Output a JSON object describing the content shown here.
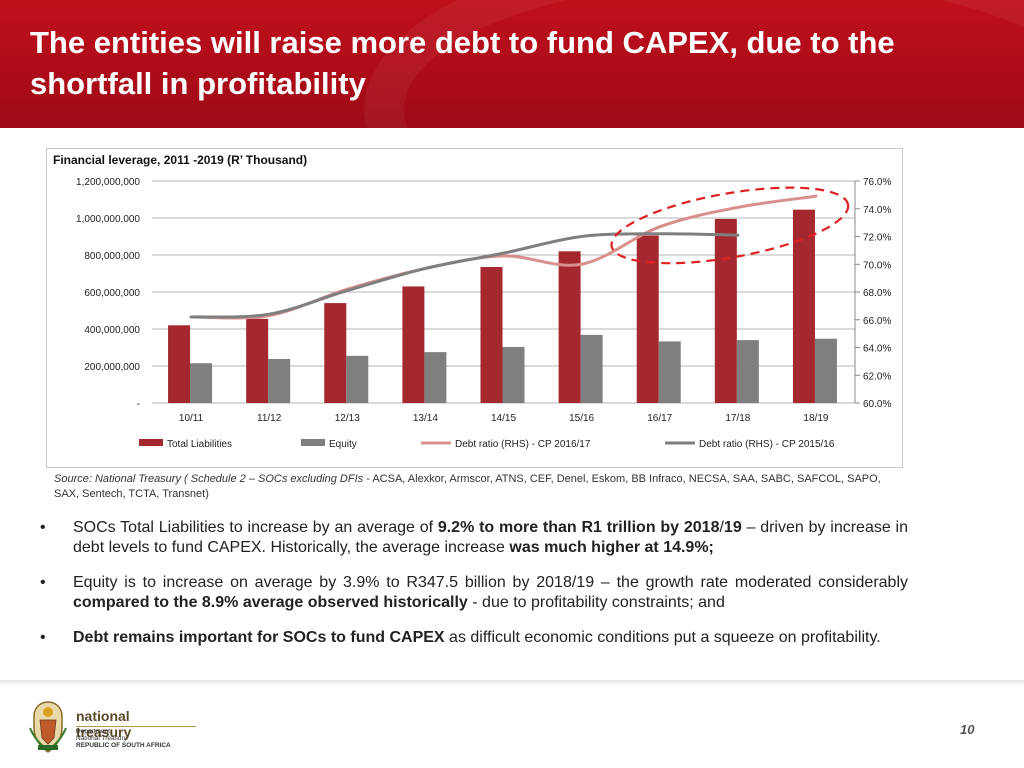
{
  "slide": {
    "title": "The entities will raise more debt to fund CAPEX, due to the shortfall in profitability",
    "page_number": "10"
  },
  "chart_data": {
    "type": "bar",
    "title": "Financial leverage, 2011 -2019 (R’ Thousand)",
    "categories": [
      "10/11",
      "11/12",
      "12/13",
      "13/14",
      "14/15",
      "15/16",
      "16/17",
      "17/18",
      "18/19"
    ],
    "left_axis": {
      "ylim": [
        0,
        1200000000
      ],
      "ticks": [
        0,
        200000000,
        400000000,
        600000000,
        800000000,
        1000000000,
        1200000000
      ],
      "tick_labels": [
        "-",
        "200,000,000",
        "400,000,000",
        "600,000,000",
        "800,000,000",
        "1,000,000,000",
        "1,200,000,000"
      ]
    },
    "right_axis": {
      "ylim": [
        60,
        76
      ],
      "ticks": [
        60,
        62,
        64,
        66,
        68,
        70,
        72,
        74,
        76
      ],
      "tick_labels": [
        "60.0%",
        "62.0%",
        "64.0%",
        "66.0%",
        "68.0%",
        "70.0%",
        "72.0%",
        "74.0%",
        "76.0%"
      ]
    },
    "series": [
      {
        "name": "Total Liabilities",
        "kind": "bar",
        "axis": "left",
        "color": "#a4282d",
        "values": [
          420000000,
          455000000,
          540000000,
          630000000,
          735000000,
          820000000,
          905000000,
          995000000,
          1045000000
        ]
      },
      {
        "name": "Equity",
        "kind": "bar",
        "axis": "left",
        "color": "#7f7f7f",
        "values": [
          215000000,
          238000000,
          255000000,
          275000000,
          303000000,
          368000000,
          333000000,
          340000000,
          347500000
        ]
      },
      {
        "name": "Debt ratio (RHS) - CP 2016/17",
        "kind": "line",
        "axis": "right",
        "color": "#d98f8c",
        "values": [
          66.2,
          66.3,
          68.2,
          69.7,
          70.6,
          70.0,
          72.7,
          74.1,
          74.9
        ]
      },
      {
        "name": "Debt ratio (RHS) - CP 2015/16",
        "kind": "line",
        "axis": "right",
        "color": "#7f7f7f",
        "values": [
          66.2,
          66.4,
          68.1,
          69.7,
          70.8,
          72.0,
          72.2,
          72.1,
          null
        ]
      }
    ],
    "annotation": {
      "type": "dashed-ellipse",
      "color": "#e02020"
    },
    "legend_placement": "bottom",
    "grid": true
  },
  "source": {
    "prefix": "Source: National Treasury ( Schedule 2 – SOCs excluding DFIs",
    "rest": " - ACSA, Alexkor, Armscor, ATNS, CEF, Denel, Eskom, BB Infraco, NECSA, SAA, SABC, SAFCOL, SAPO, SAX, Sentech, TCTA, Transnet)"
  },
  "bullets": [
    {
      "marker": "•",
      "parts": [
        {
          "text": "SOCs Total Liabilities to increase by an average of  ",
          "bold": false
        },
        {
          "text": "9.2%  to more than R1 trillion by 2018",
          "bold": true
        },
        {
          "text": "/",
          "bold": false
        },
        {
          "text": "19",
          "bold": true
        },
        {
          "text": " – driven by increase in debt levels to fund CAPEX. Historically, the average increase ",
          "bold": false
        },
        {
          "text": "was much higher at 14.9%;",
          "bold": true
        }
      ]
    },
    {
      "marker": "•",
      "parts": [
        {
          "text": "Equity is to increase on average by 3.9% to R347.5 billion by 2018/19 – the growth rate moderated considerably ",
          "bold": false
        },
        {
          "text": "compared to the 8.9% average observed historically",
          "bold": true
        },
        {
          "text": " - due to profitability constraints; and",
          "bold": false
        }
      ]
    },
    {
      "marker": "•",
      "parts": [
        {
          "text": "Debt remains important for SOCs to fund CAPEX",
          "bold": true
        },
        {
          "text": " as difficult economic conditions put a squeeze on profitability.",
          "bold": false
        }
      ]
    }
  ],
  "logo": {
    "brand": "national treasury",
    "line1": "Department:",
    "line2": "National Treasury",
    "line3": "REPUBLIC OF SOUTH AFRICA"
  }
}
